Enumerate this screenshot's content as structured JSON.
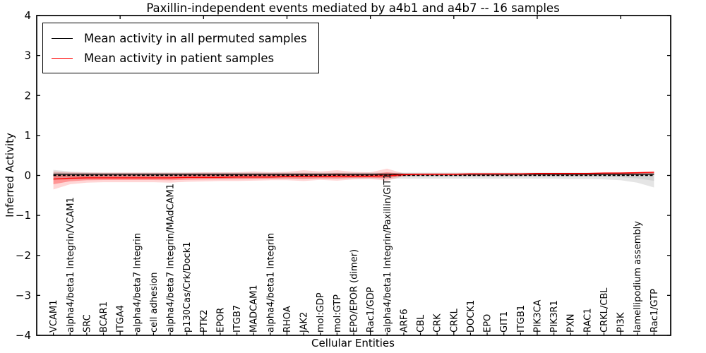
{
  "chart": {
    "title": "Paxillin-independent events mediated by a4b1 and a4b7 -- 16 samples",
    "xlabel": "Cellular Entities",
    "ylabel": "Inferred Activity"
  },
  "chart_data": {
    "type": "line",
    "title": "Paxillin-independent events mediated by a4b1 and a4b7 -- 16 samples",
    "xlabel": "Cellular Entities",
    "ylabel": "Inferred Activity",
    "ylim": [
      -4,
      4
    ],
    "yticks": [
      -4,
      -3,
      -2,
      -1,
      0,
      1,
      2,
      3,
      4
    ],
    "xlim": [
      0,
      38
    ],
    "x_major_ticks": [
      5,
      10,
      15,
      20,
      25,
      30,
      35
    ],
    "grid": false,
    "legend_position": "upper left",
    "categories": [
      "VCAM1",
      "alpha4/beta1 Integrin/VCAM1",
      "SRC",
      "BCAR1",
      "ITGA4",
      "alpha4/beta7 Integrin",
      "cell adhesion",
      "alpha4/beta7 Integrin/MAdCAM1",
      "p130Cas/Crk/Dock1",
      "PTK2",
      "EPOR",
      "ITGB7",
      "MADCAM1",
      "alpha4/beta1 Integrin",
      "RHOA",
      "JAK2",
      "mol:GDP",
      "mol:GTP",
      "EPO/EPOR (dimer)",
      "Rac1/GDP",
      "alpha4/beta1 Integrin/Paxillin/GIT1",
      "ARF6",
      "CBL",
      "CRK",
      "CRKL",
      "DOCK1",
      "EPO",
      "GIT1",
      "ITGB1",
      "PIK3CA",
      "PIK3R1",
      "PXN",
      "RAC1",
      "CRKL/CBL",
      "PI3K",
      "lamellipodium assembly",
      "Rac1/GTP"
    ],
    "reference_line": {
      "value": 0,
      "style": "dashed",
      "color": "#000000"
    },
    "series": [
      {
        "name": "Mean activity in all permuted samples",
        "color": "#000000",
        "line_style": "solid",
        "band_color": "#bfbfbf",
        "values": [
          0.03,
          0.03,
          0.03,
          0.03,
          0.03,
          0.03,
          0.03,
          0.03,
          0.03,
          0.03,
          0.03,
          0.03,
          0.03,
          0.03,
          0.03,
          0.03,
          0.03,
          0.03,
          0.03,
          0.03,
          0.03,
          0.03,
          0.03,
          0.03,
          0.03,
          0.03,
          0.03,
          0.03,
          0.03,
          0.03,
          0.03,
          0.03,
          0.03,
          0.03,
          0.03,
          0.03,
          0.03
        ],
        "band_upper": [
          0.14,
          0.1,
          0.08,
          0.07,
          0.07,
          0.07,
          0.07,
          0.07,
          0.07,
          0.07,
          0.07,
          0.07,
          0.07,
          0.07,
          0.07,
          0.07,
          0.07,
          0.07,
          0.07,
          0.07,
          0.07,
          0.07,
          0.07,
          0.07,
          0.07,
          0.07,
          0.07,
          0.07,
          0.07,
          0.07,
          0.07,
          0.07,
          0.07,
          0.07,
          0.08,
          0.08,
          0.09
        ],
        "band_lower": [
          -0.12,
          -0.1,
          -0.09,
          -0.08,
          -0.08,
          -0.08,
          -0.08,
          -0.08,
          -0.08,
          -0.08,
          -0.08,
          -0.08,
          -0.08,
          -0.08,
          -0.08,
          -0.08,
          -0.08,
          -0.08,
          -0.08,
          -0.08,
          -0.08,
          -0.08,
          -0.08,
          -0.08,
          -0.08,
          -0.08,
          -0.08,
          -0.08,
          -0.08,
          -0.08,
          -0.08,
          -0.09,
          -0.09,
          -0.1,
          -0.12,
          -0.18,
          -0.3
        ]
      },
      {
        "name": "Mean activity in patient samples",
        "color": "#ff0000",
        "line_style": "solid",
        "band_color": "#ff0000",
        "values": [
          -0.09,
          -0.07,
          -0.06,
          -0.06,
          -0.06,
          -0.06,
          -0.06,
          -0.06,
          -0.05,
          -0.05,
          -0.05,
          -0.04,
          -0.04,
          -0.04,
          -0.03,
          -0.03,
          -0.03,
          -0.02,
          -0.02,
          -0.02,
          -0.01,
          0.02,
          0.03,
          0.03,
          0.03,
          0.04,
          0.04,
          0.04,
          0.04,
          0.05,
          0.05,
          0.05,
          0.05,
          0.06,
          0.06,
          0.07,
          0.08
        ],
        "band_upper": [
          0.1,
          0.08,
          0.07,
          0.07,
          0.07,
          0.07,
          0.07,
          0.07,
          0.07,
          0.08,
          0.08,
          0.08,
          0.1,
          0.08,
          0.09,
          0.13,
          0.1,
          0.13,
          0.09,
          0.08,
          0.17,
          0.05,
          0.05,
          0.05,
          0.05,
          0.05,
          0.05,
          0.05,
          0.05,
          0.06,
          0.06,
          0.06,
          0.06,
          0.07,
          0.07,
          0.08,
          0.09
        ],
        "band_lower": [
          -0.35,
          -0.22,
          -0.18,
          -0.17,
          -0.17,
          -0.17,
          -0.17,
          -0.18,
          -0.16,
          -0.15,
          -0.14,
          -0.14,
          -0.13,
          -0.12,
          -0.12,
          -0.14,
          -0.11,
          -0.13,
          -0.1,
          -0.09,
          -0.13,
          -0.02,
          -0.01,
          -0.01,
          -0.01,
          -0.01,
          -0.01,
          -0.01,
          -0.01,
          0.0,
          0.0,
          0.0,
          0.0,
          0.01,
          0.01,
          0.02,
          0.03
        ]
      }
    ]
  }
}
